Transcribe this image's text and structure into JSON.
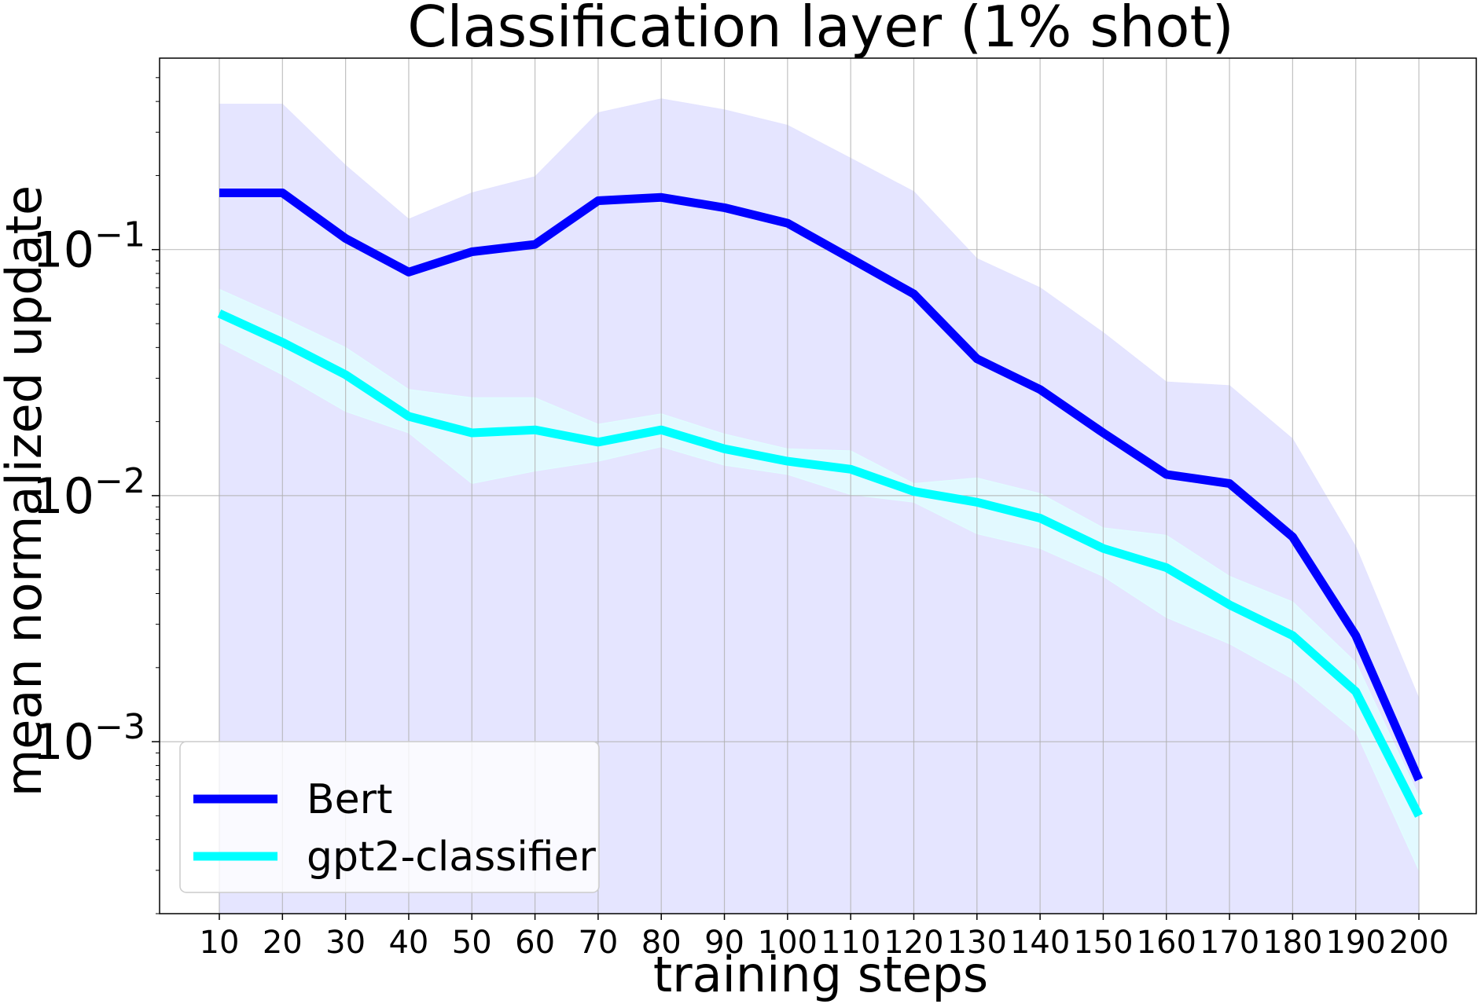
{
  "chart_data": {
    "type": "line",
    "title": "Classification layer (1% shot)",
    "xlabel": "training steps",
    "ylabel": "mean normalized update",
    "yscale": "log",
    "ylim": [
      0.0002,
      0.6
    ],
    "yticks": [
      {
        "value": 0.1,
        "base": "10",
        "exp": "−1"
      },
      {
        "value": 0.01,
        "base": "10",
        "exp": "−2"
      },
      {
        "value": 0.001,
        "base": "10",
        "exp": "−3"
      }
    ],
    "x": [
      10,
      20,
      30,
      40,
      50,
      60,
      70,
      80,
      90,
      100,
      110,
      120,
      130,
      140,
      150,
      160,
      170,
      180,
      190,
      200
    ],
    "grid": true,
    "legend_position": "lower-left",
    "series": [
      {
        "name": "Bert",
        "color": "#0000ff",
        "band_color": "#e4e4ff",
        "values": [
          0.17,
          0.17,
          0.111,
          0.081,
          0.098,
          0.105,
          0.158,
          0.163,
          0.148,
          0.128,
          0.092,
          0.066,
          0.036,
          0.027,
          0.018,
          0.0122,
          0.0112,
          0.0068,
          0.0027,
          0.0007
        ],
        "lower": [
          0.0002,
          0.0002,
          0.0002,
          0.0002,
          0.0002,
          0.0002,
          0.0002,
          0.0002,
          0.0002,
          0.0002,
          0.0002,
          0.0002,
          0.0002,
          0.0002,
          0.0002,
          0.0002,
          0.0002,
          0.0002,
          0.0002,
          0.0002
        ],
        "upper": [
          0.39,
          0.39,
          0.22,
          0.133,
          0.17,
          0.198,
          0.36,
          0.41,
          0.37,
          0.32,
          0.235,
          0.172,
          0.092,
          0.07,
          0.046,
          0.029,
          0.028,
          0.017,
          0.0062,
          0.0015
        ]
      },
      {
        "name": "gpt2-classifier",
        "color": "#00ffff",
        "band_color": "#e0ffff",
        "values": [
          0.055,
          0.042,
          0.031,
          0.021,
          0.018,
          0.0185,
          0.0165,
          0.0185,
          0.0155,
          0.0138,
          0.0128,
          0.0104,
          0.0094,
          0.0081,
          0.0061,
          0.0051,
          0.0036,
          0.0027,
          0.0016,
          0.0005
        ],
        "lower": [
          0.042,
          0.031,
          0.022,
          0.018,
          0.0112,
          0.0126,
          0.0138,
          0.0158,
          0.0133,
          0.0122,
          0.0101,
          0.0094,
          0.007,
          0.0061,
          0.0047,
          0.0032,
          0.0025,
          0.0018,
          0.0011,
          0.0003
        ],
        "upper": [
          0.069,
          0.053,
          0.04,
          0.027,
          0.025,
          0.025,
          0.0195,
          0.0215,
          0.0178,
          0.0155,
          0.0152,
          0.0112,
          0.0118,
          0.0102,
          0.0074,
          0.0069,
          0.0047,
          0.0037,
          0.0021,
          0.0006
        ]
      }
    ]
  }
}
